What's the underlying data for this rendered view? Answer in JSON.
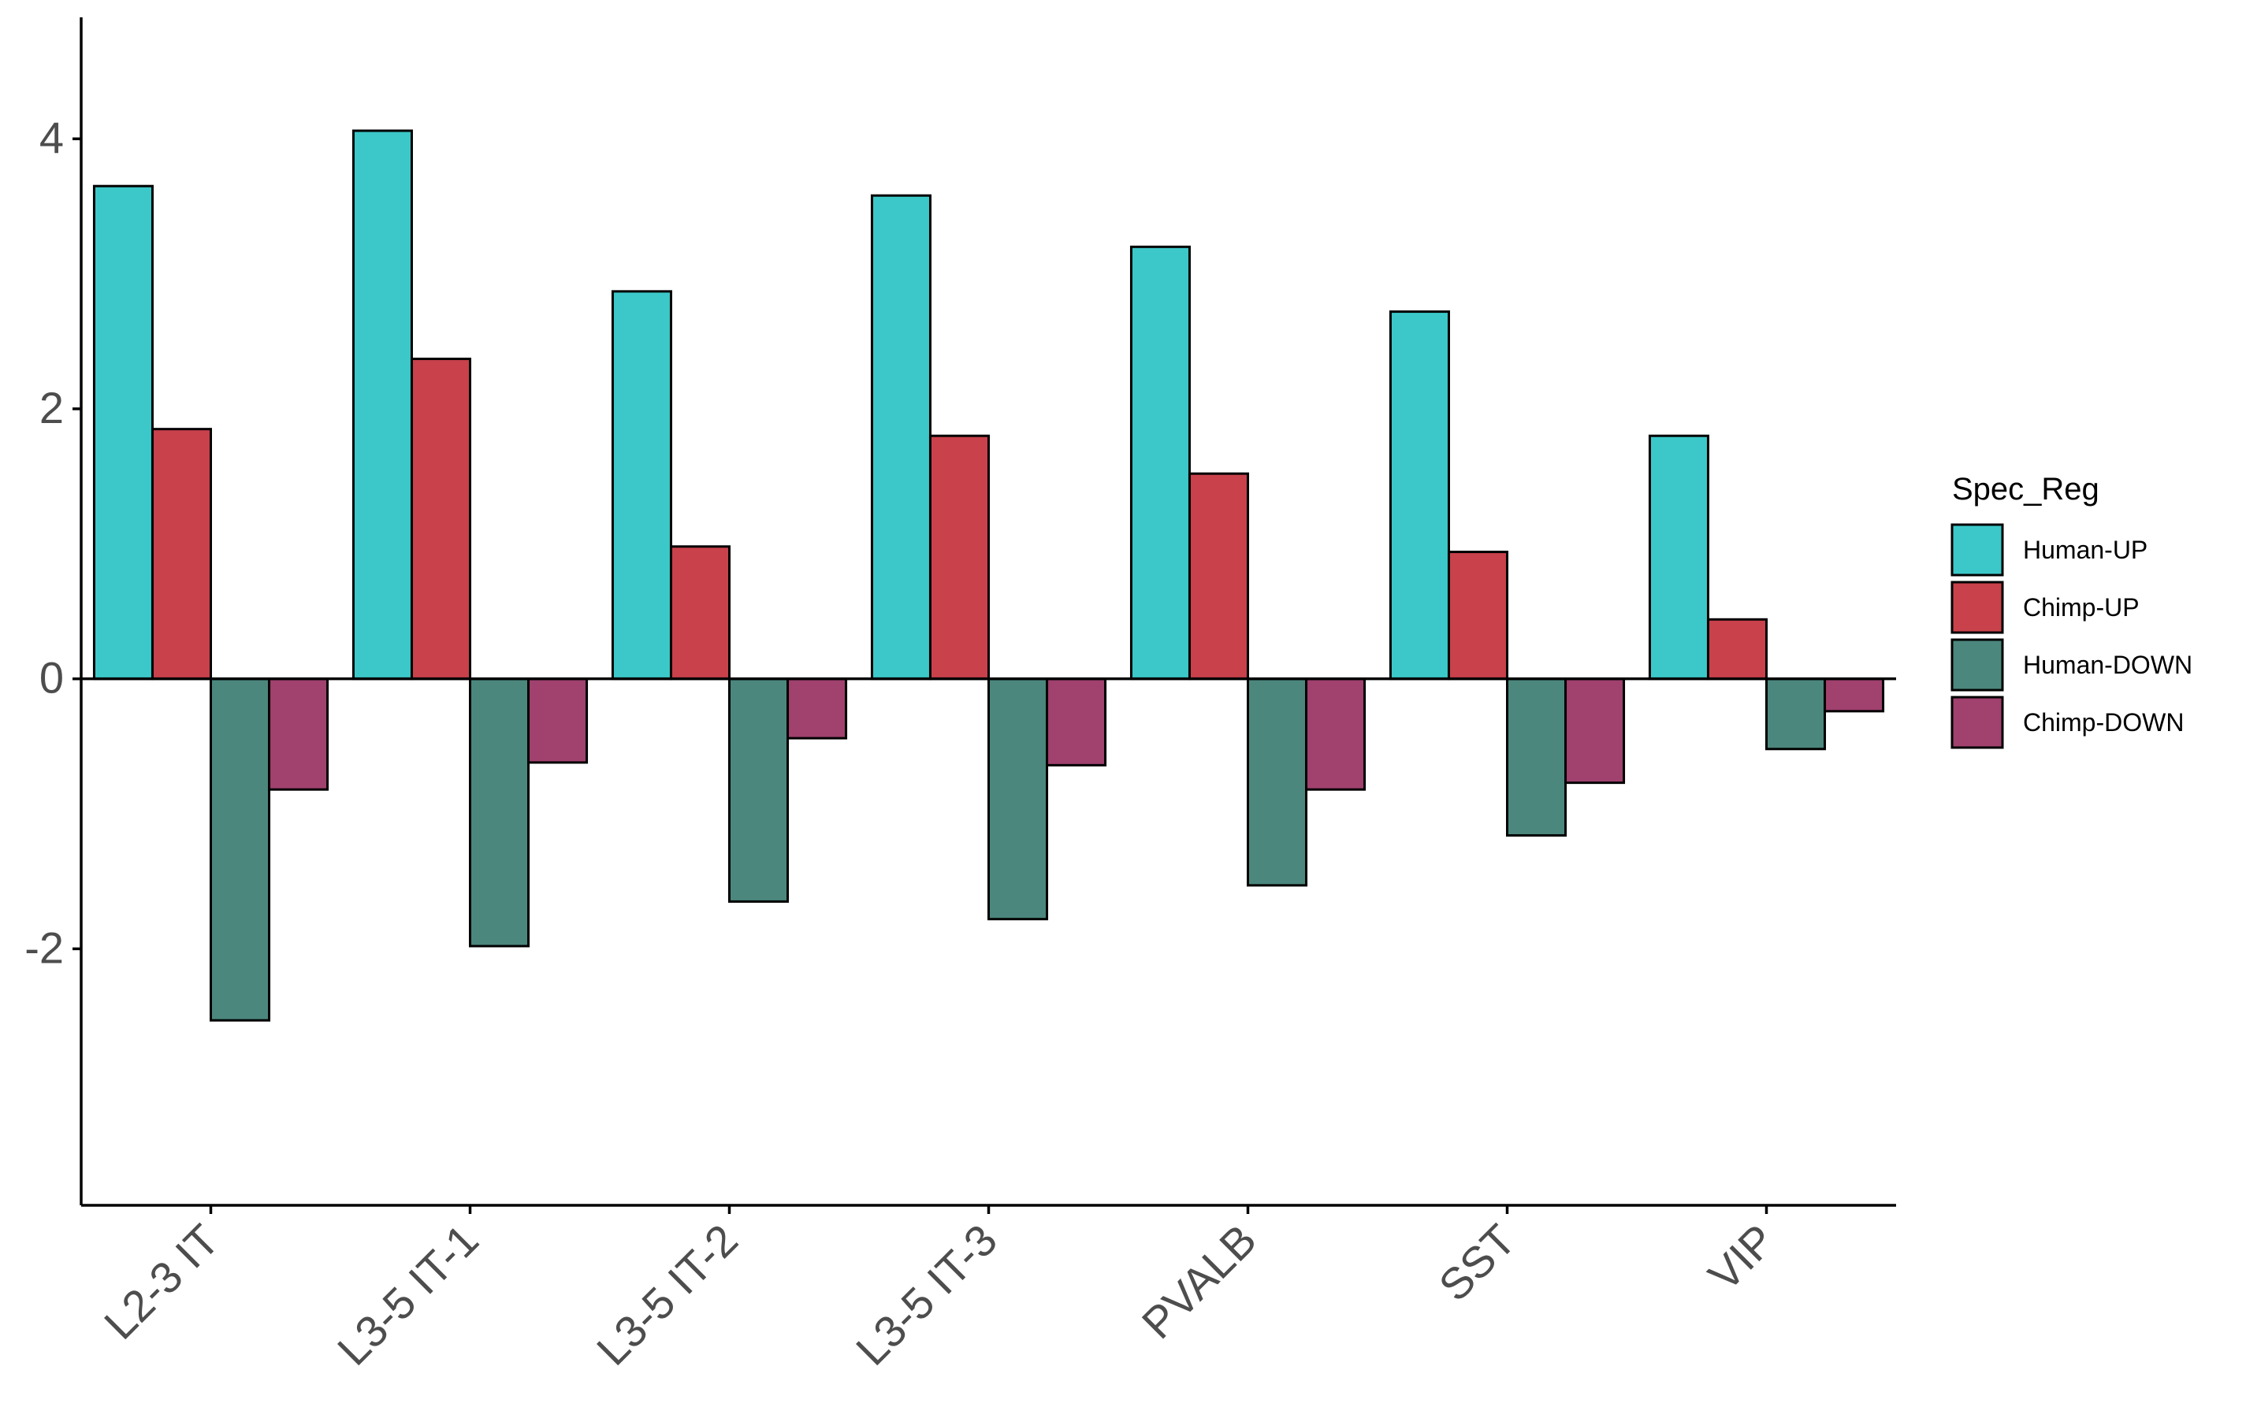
{
  "chart_data": {
    "type": "bar",
    "title": "",
    "xlabel": "",
    "ylabel": "",
    "categories": [
      "L2-3 IT",
      "L3-5 IT-1",
      "L3-5 IT-2",
      "L3-5 IT-3",
      "PVALB",
      "SST",
      "VIP"
    ],
    "series": [
      {
        "name": "Human-UP",
        "color": "#3CC8C8",
        "values": [
          3.65,
          4.06,
          2.87,
          3.58,
          3.2,
          2.72,
          1.8
        ]
      },
      {
        "name": "Chimp-UP",
        "color": "#C8414B",
        "values": [
          1.85,
          2.37,
          0.98,
          1.8,
          1.52,
          0.94,
          0.44
        ]
      },
      {
        "name": "Human-DOWN",
        "color": "#4B877D",
        "values": [
          -2.53,
          -1.98,
          -1.65,
          -1.78,
          -1.53,
          -1.16,
          -0.52
        ]
      },
      {
        "name": "Chimp-DOWN",
        "color": "#A0416E",
        "values": [
          -0.82,
          -0.62,
          -0.44,
          -0.64,
          -0.82,
          -0.77,
          -0.24
        ]
      }
    ],
    "ylim": [
      -3.9,
      4.9
    ],
    "yticks": [
      -2,
      0,
      2,
      4
    ],
    "ytick_labels": [
      "-2",
      "0",
      "2",
      "4"
    ],
    "legend": {
      "title": "Spec_Reg",
      "position": "right"
    },
    "grid": false
  }
}
